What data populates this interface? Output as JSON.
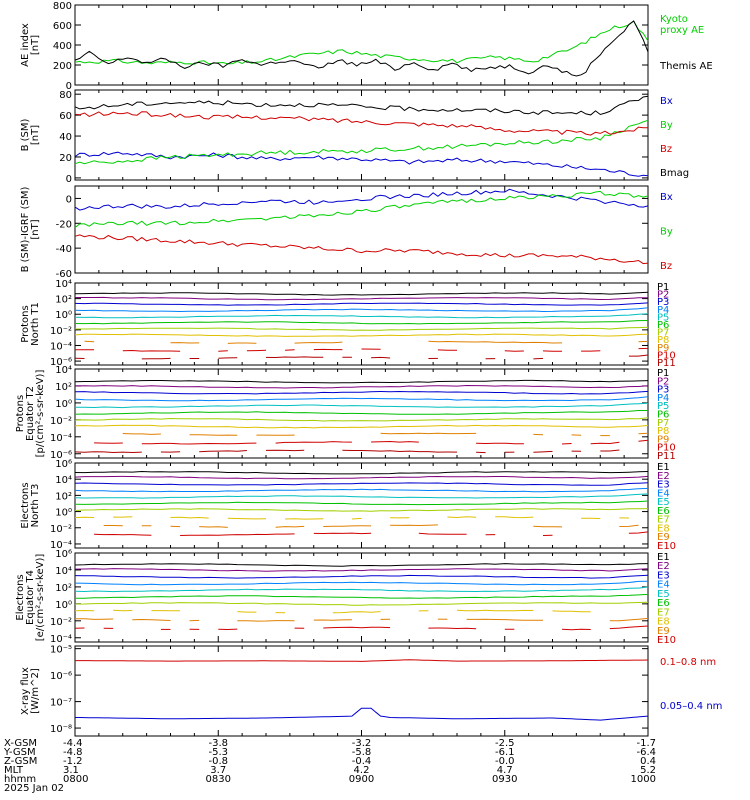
{
  "chart_data": [
    {
      "id": "ae",
      "type": "line",
      "ylabel": [
        "AE index",
        "[nT]"
      ],
      "ylim": [
        0,
        800
      ],
      "yticks": [
        0,
        200,
        400,
        600,
        800
      ],
      "legend": [
        {
          "text": "Kyoto",
          "color": "#00d000"
        },
        {
          "text": "proxy AE",
          "color": "#00d000"
        },
        {
          "text": "Themis AE",
          "color": "#000000"
        }
      ],
      "series": [
        {
          "name": "Kyoto proxy AE",
          "color": "#00d000",
          "x": [
            0,
            8,
            16,
            24,
            32,
            40,
            48,
            56,
            64,
            72,
            80,
            88,
            96,
            104,
            112,
            117,
            120
          ],
          "y": [
            230,
            240,
            220,
            230,
            210,
            240,
            300,
            340,
            290,
            260,
            240,
            280,
            240,
            360,
            560,
            630,
            440
          ]
        },
        {
          "name": "Themis AE",
          "color": "#000000",
          "x": [
            0,
            3,
            7,
            11,
            15,
            19,
            23,
            27,
            31,
            35,
            39,
            43,
            47,
            51,
            55,
            59,
            63,
            67,
            71,
            75,
            79,
            83,
            87,
            91,
            95,
            99,
            103,
            106,
            109,
            112,
            115,
            117,
            120
          ],
          "y": [
            240,
            320,
            210,
            280,
            220,
            260,
            180,
            220,
            190,
            260,
            200,
            240,
            230,
            160,
            250,
            200,
            240,
            160,
            230,
            150,
            220,
            140,
            180,
            190,
            130,
            200,
            120,
            90,
            260,
            420,
            540,
            650,
            330
          ]
        }
      ]
    },
    {
      "id": "b_sm",
      "type": "line",
      "ylabel": [
        "B (SM)",
        "[nT]"
      ],
      "ylim": [
        -2,
        84
      ],
      "yticks": [
        0,
        20,
        40,
        60,
        80
      ],
      "legend": [
        {
          "text": "Bx",
          "color": "#0000d0"
        },
        {
          "text": "By",
          "color": "#00d000"
        },
        {
          "text": "Bz",
          "color": "#d00000"
        },
        {
          "text": "Bmag",
          "color": "#000000"
        }
      ],
      "series": [
        {
          "name": "Bx",
          "color": "#0000d0",
          "x": [
            0,
            10,
            20,
            30,
            40,
            50,
            60,
            70,
            80,
            90,
            100,
            110,
            120
          ],
          "y": [
            22,
            24,
            20,
            22,
            18,
            20,
            18,
            15,
            17,
            16,
            12,
            8,
            2
          ]
        },
        {
          "name": "By",
          "color": "#00d000",
          "x": [
            0,
            10,
            20,
            30,
            40,
            50,
            60,
            70,
            80,
            90,
            100,
            110,
            120
          ],
          "y": [
            14,
            16,
            20,
            22,
            24,
            25,
            26,
            28,
            30,
            33,
            35,
            38,
            55
          ]
        },
        {
          "name": "Bz",
          "color": "#d00000",
          "x": [
            0,
            10,
            20,
            30,
            40,
            50,
            60,
            70,
            80,
            90,
            100,
            110,
            120
          ],
          "y": [
            60,
            62,
            60,
            58,
            58,
            56,
            54,
            52,
            50,
            46,
            44,
            42,
            48
          ]
        },
        {
          "name": "Bmag",
          "color": "#000000",
          "x": [
            0,
            10,
            20,
            30,
            40,
            50,
            60,
            70,
            80,
            90,
            100,
            110,
            120
          ],
          "y": [
            66,
            70,
            72,
            72,
            70,
            70,
            68,
            66,
            65,
            64,
            62,
            62,
            78
          ]
        }
      ]
    },
    {
      "id": "b_sm_igrf",
      "type": "line",
      "ylabel": [
        "B (SM)-IGRF (SM)",
        "[nT]"
      ],
      "ylim": [
        -60,
        10
      ],
      "yticks": [
        -60,
        -40,
        -20,
        0
      ],
      "legend": [
        {
          "text": "Bx",
          "color": "#0000d0"
        },
        {
          "text": "By",
          "color": "#00d000"
        },
        {
          "text": "Bz",
          "color": "#d00000"
        }
      ],
      "series": [
        {
          "name": "Bx",
          "color": "#0000d0",
          "x": [
            0,
            10,
            20,
            30,
            40,
            50,
            60,
            70,
            80,
            90,
            100,
            110,
            120
          ],
          "y": [
            -8,
            -6,
            -7,
            -4,
            -2,
            -3,
            0,
            2,
            4,
            6,
            2,
            -2,
            -6
          ]
        },
        {
          "name": "By",
          "color": "#00d000",
          "x": [
            0,
            10,
            20,
            30,
            40,
            50,
            60,
            70,
            80,
            90,
            100,
            110,
            120
          ],
          "y": [
            -22,
            -20,
            -20,
            -18,
            -16,
            -14,
            -10,
            -6,
            -2,
            0,
            2,
            4,
            2
          ]
        },
        {
          "name": "Bz",
          "color": "#d00000",
          "x": [
            0,
            10,
            20,
            30,
            40,
            50,
            60,
            70,
            80,
            90,
            100,
            110,
            120
          ],
          "y": [
            -30,
            -32,
            -34,
            -36,
            -38,
            -40,
            -42,
            -42,
            -44,
            -46,
            -46,
            -48,
            -52
          ]
        }
      ]
    },
    {
      "id": "protons_t1",
      "type": "line",
      "log": true,
      "ylabel": [
        "Protons",
        "North T1"
      ],
      "ylim": [
        -6.5,
        4
      ],
      "yticks": [
        4,
        2,
        0,
        -2,
        -4,
        -6
      ],
      "ytick_labels": [
        "10⁴",
        "10²",
        "10⁰",
        "10⁻²",
        "10⁻⁴",
        "10⁻⁶"
      ],
      "channels": [
        "P1",
        "P2",
        "P3",
        "P4",
        "P5",
        "P6",
        "P7",
        "P8",
        "P9",
        "P10",
        "P11"
      ],
      "levels": [
        2.6,
        2.0,
        1.3,
        0.5,
        -0.3,
        -1.1,
        -1.9,
        -2.7,
        -3.6,
        -4.6,
        -5.6
      ]
    },
    {
      "id": "protons_t2",
      "type": "line",
      "log": true,
      "ylabel": [
        "Protons",
        "Equator T2",
        "[p/(cm²-s-sr-keV)]"
      ],
      "ylim": [
        -6.5,
        4
      ],
      "yticks": [
        4,
        2,
        0,
        -2,
        -4,
        -6
      ],
      "ytick_labels": [
        "10⁴",
        "10²",
        "10⁰",
        "10⁻²",
        "10⁻⁴",
        "10⁻⁶"
      ],
      "channels": [
        "P1",
        "P2",
        "P3",
        "P4",
        "P5",
        "P6",
        "P7",
        "P8",
        "P9",
        "P10",
        "P11"
      ],
      "levels": [
        2.5,
        1.9,
        1.2,
        0.4,
        -0.4,
        -1.2,
        -2.0,
        -2.8,
        -3.7,
        -4.7,
        -5.7
      ]
    },
    {
      "id": "electrons_t3",
      "type": "line",
      "log": true,
      "ylabel": [
        "Electrons",
        "North T3"
      ],
      "ylim": [
        -4.5,
        6
      ],
      "yticks": [
        6,
        4,
        2,
        0,
        -2,
        -4
      ],
      "ytick_labels": [
        "10⁶",
        "10⁴",
        "10²",
        "10⁰",
        "10⁻²",
        "10⁻⁴"
      ],
      "channels": [
        "E1",
        "E2",
        "E3",
        "E4",
        "E5",
        "E6",
        "E7",
        "E8",
        "E9",
        "E10"
      ],
      "levels": [
        4.8,
        4.2,
        3.4,
        2.6,
        1.8,
        1.0,
        0.2,
        -0.8,
        -1.8,
        -2.8
      ]
    },
    {
      "id": "electrons_t4",
      "type": "line",
      "log": true,
      "ylabel": [
        "Electrons",
        "Equator T4",
        "[e/(cm²-s-sr-keV)]"
      ],
      "ylim": [
        -4.5,
        6
      ],
      "yticks": [
        6,
        4,
        2,
        0,
        -2,
        -4
      ],
      "ytick_labels": [
        "10⁶",
        "10⁴",
        "10²",
        "10⁰",
        "10⁻²",
        "10⁻⁴"
      ],
      "channels": [
        "E1",
        "E2",
        "E3",
        "E4",
        "E5",
        "E6",
        "E7",
        "E8",
        "E9",
        "E10"
      ],
      "levels": [
        4.6,
        4.0,
        3.2,
        2.4,
        1.6,
        0.8,
        0.0,
        -0.9,
        -1.9,
        -2.9
      ]
    },
    {
      "id": "xray",
      "type": "line",
      "log": true,
      "ylabel": [
        "X-ray flux",
        "[W/m^2]"
      ],
      "ylim": [
        -8.3,
        -4.9
      ],
      "yticks": [
        -5,
        -6,
        -7,
        -8
      ],
      "ytick_labels": [
        "10⁻⁵",
        "10⁻⁶",
        "10⁻⁷",
        "10⁻⁸"
      ],
      "legend": [
        {
          "text": "0.1–0.8 nm",
          "color": "#d00000"
        },
        {
          "text": "0.05–0.4 nm",
          "color": "#0000d0"
        }
      ],
      "series": [
        {
          "name": "0.1–0.8 nm",
          "color": "#d00000",
          "x": [
            0,
            20,
            40,
            60,
            70,
            80,
            100,
            120
          ],
          "y": [
            -5.45,
            -5.47,
            -5.46,
            -5.48,
            -5.42,
            -5.47,
            -5.46,
            -5.43
          ]
        },
        {
          "name": "0.05–0.4 nm",
          "color": "#0000d0",
          "x": [
            0,
            20,
            40,
            58,
            60,
            62,
            64,
            66,
            80,
            100,
            110,
            120
          ],
          "y": [
            -7.6,
            -7.65,
            -7.62,
            -7.55,
            -7.25,
            -7.25,
            -7.55,
            -7.6,
            -7.65,
            -7.62,
            -7.7,
            -7.55
          ]
        }
      ]
    }
  ],
  "ephemeris": {
    "row_labels": [
      "X-GSM",
      "Y-GSM",
      "Z-GSM",
      "MLT",
      "hhmm",
      "2025 Jan 02"
    ],
    "columns": [
      {
        "x": 0,
        "values": [
          "-4.4",
          "-4.8",
          "-1.2",
          "3.1",
          "0800"
        ]
      },
      {
        "x": 30,
        "values": [
          "-3.8",
          "-5.3",
          "-0.8",
          "3.7",
          "0830"
        ]
      },
      {
        "x": 60,
        "values": [
          "-3.2",
          "-5.8",
          "-0.4",
          "4.2",
          "0900"
        ]
      },
      {
        "x": 90,
        "values": [
          "-2.5",
          "-6.1",
          "-0.0",
          "4.7",
          "0930"
        ]
      },
      {
        "x": 120,
        "values": [
          "-1.7",
          "-6.4",
          "0.4",
          "5.2",
          "1000"
        ]
      }
    ]
  },
  "colors": {
    "channels": [
      "#000000",
      "#800080",
      "#0000d0",
      "#0080ff",
      "#00c0c0",
      "#00c000",
      "#a0d000",
      "#e0c000",
      "#e08000",
      "#d00000",
      "#b00000"
    ]
  }
}
